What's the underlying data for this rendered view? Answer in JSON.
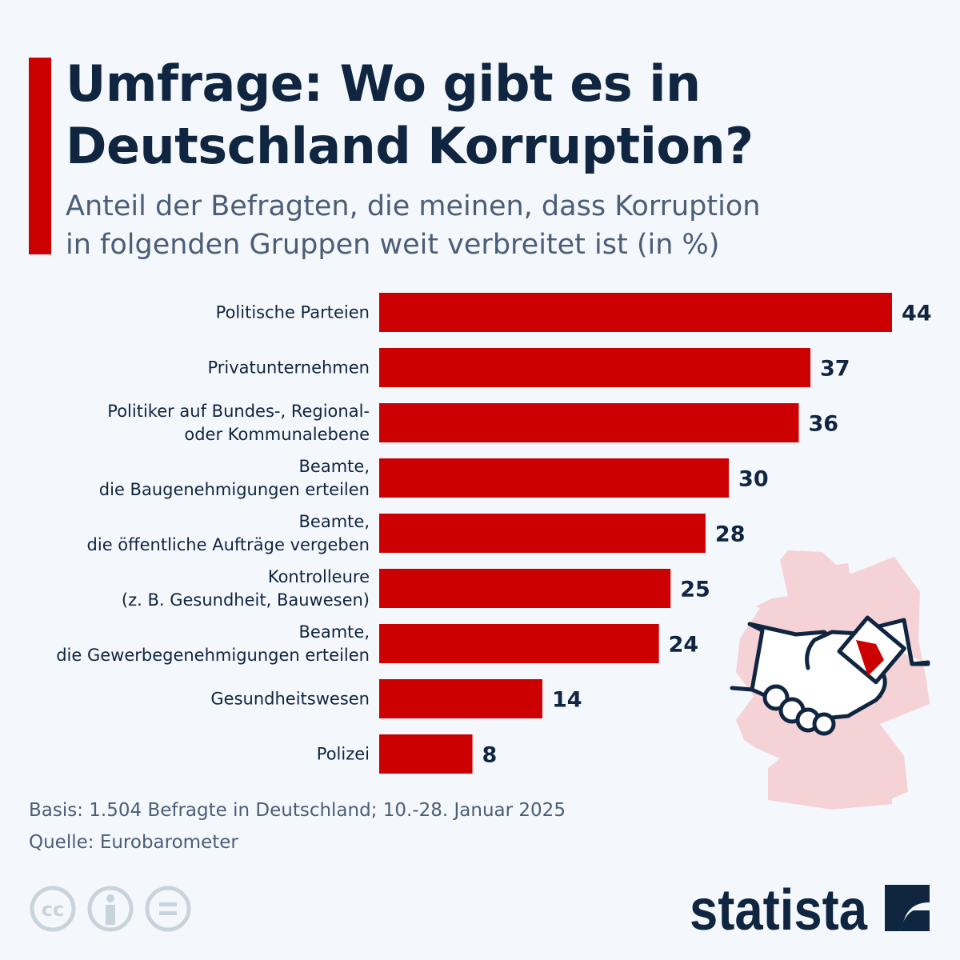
{
  "title_line1": "Umfrage: Wo gibt es in",
  "title_line2": "Deutschland Korruption?",
  "subtitle_line1": "Anteil der Befragten, die meinen, dass Korruption",
  "subtitle_line2": "in folgenden Gruppen weit verbreitet ist (in %)",
  "chart_data": {
    "type": "bar",
    "orientation": "horizontal",
    "categories": [
      [
        "Politische Parteien"
      ],
      [
        "Privatunternehmen"
      ],
      [
        "Politiker auf Bundes-, Regional-",
        "oder Kommunalebene"
      ],
      [
        "Beamte,",
        "die Baugenehmigungen erteilen"
      ],
      [
        "Beamte,",
        "die öffentliche Aufträge vergeben"
      ],
      [
        "Kontrolleure",
        "(z. B. Gesundheit, Bauwesen)"
      ],
      [
        "Beamte,",
        "die Gewerbegenehmigungen erteilen"
      ],
      [
        "Gesundheitswesen"
      ],
      [
        "Polizei"
      ]
    ],
    "values": [
      44,
      37,
      36,
      30,
      28,
      25,
      24,
      14,
      8
    ],
    "xlim": [
      0,
      44
    ],
    "grid": false,
    "bar_color": "#cc0000"
  },
  "footer": {
    "basis": "Basis: 1.504 Befragte in Deutschland; 10.-28. Januar 2025",
    "source": "Quelle: Eurobarometer"
  },
  "brand": "statista",
  "icons": [
    "creative-commons-icon",
    "attribution-icon",
    "no-derivatives-icon",
    "germany-map-icon",
    "handshake-money-icon"
  ],
  "colors": {
    "accent": "#cc0000",
    "title": "#0f2540",
    "subtitle": "#4a5e78",
    "map": "#f5d2d5"
  }
}
